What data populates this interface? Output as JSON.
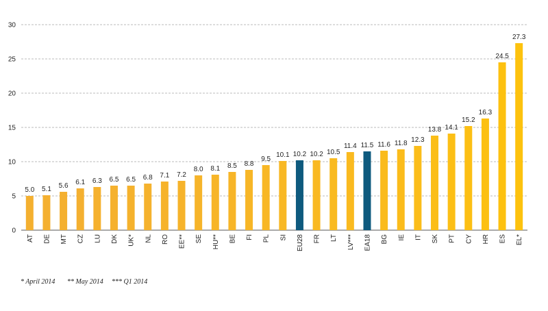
{
  "chart_data": {
    "type": "bar",
    "categories": [
      "AT",
      "DE",
      "MT",
      "CZ",
      "LU",
      "DK",
      "UK*",
      "NL",
      "RO",
      "EE**",
      "SE",
      "HU**",
      "BE",
      "FI",
      "PL",
      "SI",
      "EU28",
      "FR",
      "LT",
      "LV***",
      "EA18",
      "BG",
      "IE",
      "IT",
      "SK",
      "PT",
      "CY",
      "HR",
      "ES",
      "EL*"
    ],
    "values": [
      5.0,
      5.1,
      5.6,
      6.1,
      6.3,
      6.5,
      6.5,
      6.8,
      7.1,
      7.2,
      8.0,
      8.1,
      8.5,
      8.8,
      9.5,
      10.1,
      10.2,
      10.2,
      10.5,
      11.4,
      11.5,
      11.6,
      11.8,
      12.3,
      13.8,
      14.1,
      15.2,
      16.3,
      24.5,
      27.3
    ],
    "value_labels": [
      "5.0",
      "5.1",
      "5.6",
      "6.1",
      "6.3",
      "6.5",
      "6.5",
      "6.8",
      "7.1",
      "7.2",
      "8.0",
      "8.1",
      "8.5",
      "8.8",
      "9.5",
      "10.1",
      "10.2",
      "10.2",
      "10.5",
      "11.4",
      "11.5",
      "11.6",
      "11.8",
      "12.3",
      "13.8",
      "14.1",
      "15.2",
      "16.3",
      "24.5",
      "27.3"
    ],
    "colors": [
      "#f4b030",
      "#f4b030",
      "#f4b030",
      "#f4b030",
      "#f5b12e",
      "#f5b12e",
      "#f5b22d",
      "#f5b22d",
      "#f6b32b",
      "#f6b32b",
      "#f6b42a",
      "#f7b528",
      "#f7b528",
      "#f7b627",
      "#f8b725",
      "#f8b824",
      "#0e5a7e",
      "#f9b922",
      "#f9ba20",
      "#faba1f",
      "#0e5a7e",
      "#fabb1d",
      "#fbbc1b",
      "#fbbd1a",
      "#fbbe18",
      "#fcbf16",
      "#fcbf14",
      "#fcc012",
      "#fdc110",
      "#fdc20e"
    ],
    "ylim": [
      0,
      30
    ],
    "yticks": [
      0,
      5,
      10,
      15,
      20,
      25,
      30
    ],
    "grid": true,
    "notes": [
      "* April 2014",
      "** May 2014",
      "*** Q1 2014"
    ]
  }
}
